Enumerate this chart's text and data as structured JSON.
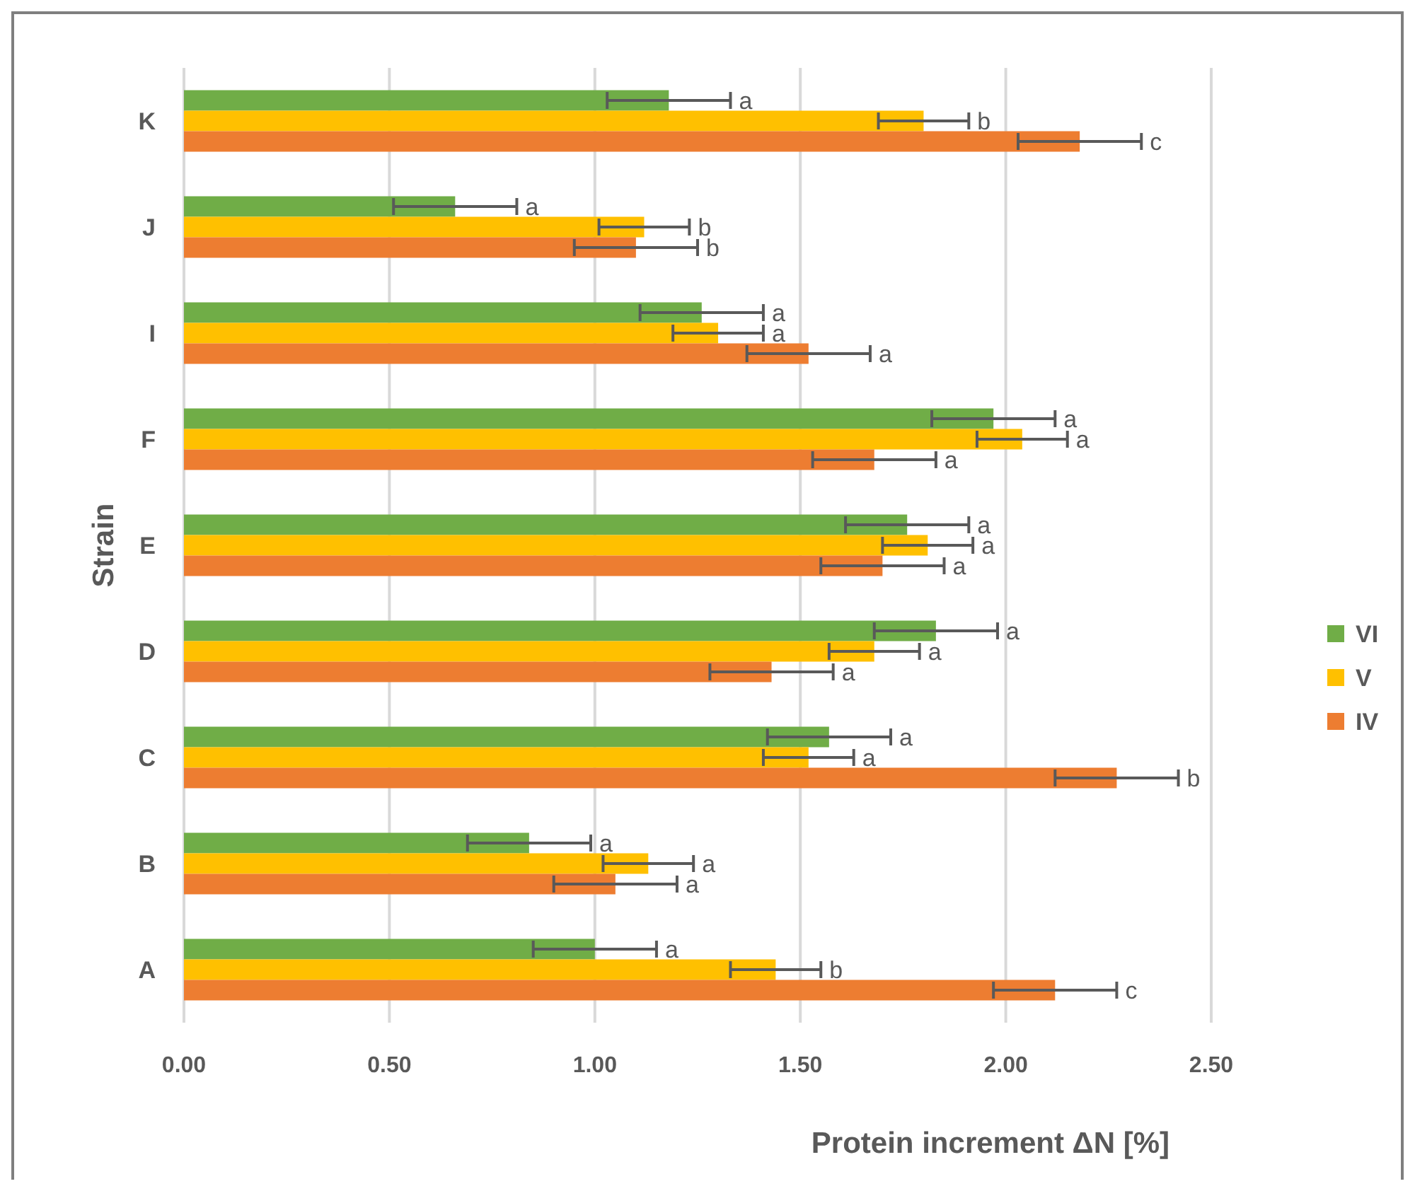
{
  "chart_data": {
    "type": "bar",
    "orientation": "horizontal",
    "xlabel": "Protein increment ΔN [%]",
    "ylabel": "Strain",
    "categories": [
      "K",
      "J",
      "I",
      "F",
      "E",
      "D",
      "C",
      "B",
      "A"
    ],
    "series": [
      {
        "name": "VI",
        "color": "#70ad47",
        "values": [
          1.18,
          0.66,
          1.26,
          1.97,
          1.76,
          1.83,
          1.57,
          0.84,
          1.0
        ],
        "errors": [
          0.15,
          0.15,
          0.15,
          0.15,
          0.15,
          0.15,
          0.15,
          0.15,
          0.15
        ],
        "value_labels": [
          "a",
          "a",
          "a",
          "a",
          "a",
          "a",
          "a",
          "a",
          "a"
        ]
      },
      {
        "name": "V",
        "color": "#ffc000",
        "values": [
          1.8,
          1.12,
          1.3,
          2.04,
          1.81,
          1.68,
          1.52,
          1.13,
          1.44
        ],
        "errors": [
          0.11,
          0.11,
          0.11,
          0.11,
          0.11,
          0.11,
          0.11,
          0.11,
          0.11
        ],
        "value_labels": [
          "b",
          "b",
          "a",
          "a",
          "a",
          "a",
          "a",
          "a",
          "b"
        ]
      },
      {
        "name": "IV",
        "color": "#ed7d31",
        "values": [
          2.18,
          1.1,
          1.52,
          1.68,
          1.7,
          1.43,
          2.27,
          1.05,
          2.12
        ],
        "errors": [
          0.15,
          0.15,
          0.15,
          0.15,
          0.15,
          0.15,
          0.15,
          0.15,
          0.15
        ],
        "value_labels": [
          "c",
          "b",
          "a",
          "a",
          "a",
          "a",
          "b",
          "a",
          "c"
        ]
      }
    ],
    "xlim": [
      0,
      2.5
    ],
    "xticks": [
      {
        "value": 0,
        "label": "0.00"
      },
      {
        "value": 0.5,
        "label": "0.50"
      },
      {
        "value": 1,
        "label": "1.00"
      },
      {
        "value": 1.5,
        "label": "1.50"
      },
      {
        "value": 2,
        "label": "2.00"
      },
      {
        "value": 2.5,
        "label": "2.50"
      }
    ],
    "grid": "x",
    "legend": "right"
  }
}
